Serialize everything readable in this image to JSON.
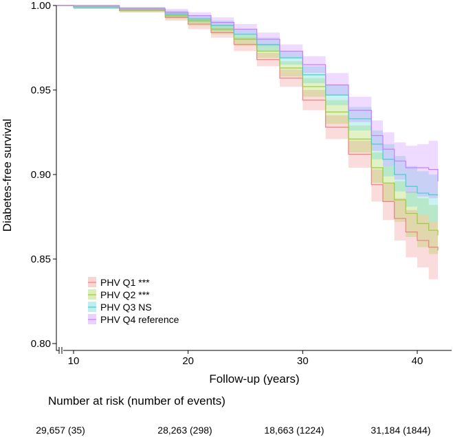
{
  "chart_data": {
    "type": "line",
    "title": "",
    "xlabel": "Follow-up (years)",
    "ylabel": "Diabetes-free survival",
    "xlim": [
      8.5,
      43
    ],
    "ylim": [
      0.8,
      1.0
    ],
    "x_ticks": [
      "10",
      "20",
      "30",
      "40"
    ],
    "y_ticks": [
      "0.80",
      "0.85",
      "0.90",
      "0.95",
      "1.00"
    ],
    "legend_position": "bottom-left",
    "confidence_bands": true,
    "series": [
      {
        "name": "PHV Q1 ***",
        "color": "#F08080",
        "x": [
          8.5,
          10,
          14,
          18,
          20,
          22,
          24,
          26,
          28,
          30,
          32,
          34,
          36,
          37,
          38,
          39,
          40,
          41,
          41.8
        ],
        "y": [
          1.0,
          0.999,
          0.997,
          0.993,
          0.989,
          0.984,
          0.977,
          0.968,
          0.957,
          0.944,
          0.928,
          0.912,
          0.894,
          0.884,
          0.874,
          0.866,
          0.861,
          0.857,
          0.855
        ],
        "lower": [
          1.0,
          0.998,
          0.996,
          0.991,
          0.986,
          0.981,
          0.973,
          0.964,
          0.952,
          0.938,
          0.921,
          0.904,
          0.884,
          0.873,
          0.861,
          0.851,
          0.845,
          0.838,
          0.835
        ],
        "upper": [
          1.0,
          1.0,
          0.999,
          0.995,
          0.992,
          0.987,
          0.981,
          0.972,
          0.962,
          0.95,
          0.935,
          0.92,
          0.903,
          0.895,
          0.886,
          0.879,
          0.876,
          0.872,
          0.871
        ]
      },
      {
        "name": "PHV Q2 ***",
        "color": "#9ACD32",
        "x": [
          8.5,
          10,
          14,
          18,
          20,
          22,
          24,
          26,
          28,
          30,
          32,
          34,
          36,
          37,
          38,
          39,
          40,
          41,
          41.8
        ],
        "y": [
          1.0,
          0.999,
          0.997,
          0.994,
          0.991,
          0.986,
          0.98,
          0.973,
          0.963,
          0.952,
          0.937,
          0.921,
          0.904,
          0.895,
          0.885,
          0.877,
          0.871,
          0.867,
          0.864
        ],
        "lower": [
          1.0,
          0.998,
          0.996,
          0.992,
          0.988,
          0.983,
          0.976,
          0.969,
          0.958,
          0.946,
          0.93,
          0.913,
          0.895,
          0.884,
          0.872,
          0.863,
          0.857,
          0.853,
          0.851
        ],
        "upper": [
          1.0,
          1.0,
          0.999,
          0.996,
          0.993,
          0.989,
          0.983,
          0.977,
          0.967,
          0.957,
          0.944,
          0.929,
          0.913,
          0.905,
          0.896,
          0.89,
          0.886,
          0.882,
          0.879
        ]
      },
      {
        "name": "PHV Q3 NS",
        "color": "#40D0D0",
        "x": [
          8.5,
          10,
          14,
          18,
          20,
          22,
          24,
          26,
          28,
          30,
          32,
          34,
          36,
          37,
          38,
          39,
          40,
          41,
          41.8
        ],
        "y": [
          1.0,
          0.999,
          0.998,
          0.995,
          0.992,
          0.988,
          0.983,
          0.977,
          0.969,
          0.959,
          0.947,
          0.933,
          0.918,
          0.909,
          0.9,
          0.893,
          0.889,
          0.888,
          0.888
        ],
        "lower": [
          1.0,
          0.998,
          0.997,
          0.993,
          0.99,
          0.985,
          0.98,
          0.973,
          0.965,
          0.954,
          0.941,
          0.926,
          0.909,
          0.899,
          0.89,
          0.881,
          0.876,
          0.872,
          0.87
        ],
        "upper": [
          1.0,
          1.0,
          0.999,
          0.997,
          0.994,
          0.991,
          0.986,
          0.981,
          0.973,
          0.964,
          0.953,
          0.94,
          0.926,
          0.918,
          0.911,
          0.905,
          0.902,
          0.9,
          0.9
        ]
      },
      {
        "name": "PHV Q4 reference",
        "color": "#C77CFF",
        "x": [
          8.5,
          10,
          14,
          18,
          20,
          22,
          24,
          26,
          28,
          30,
          32,
          34,
          36,
          37,
          38,
          39,
          40,
          41,
          41.8
        ],
        "y": [
          1.0,
          1.0,
          0.998,
          0.996,
          0.994,
          0.99,
          0.986,
          0.98,
          0.973,
          0.965,
          0.953,
          0.938,
          0.923,
          0.915,
          0.908,
          0.904,
          0.904,
          0.903,
          0.896
        ],
        "lower": [
          1.0,
          0.999,
          0.997,
          0.994,
          0.992,
          0.988,
          0.983,
          0.976,
          0.969,
          0.96,
          0.947,
          0.931,
          0.914,
          0.905,
          0.897,
          0.889,
          0.887,
          0.886,
          0.873
        ],
        "upper": [
          1.0,
          1.0,
          0.999,
          0.998,
          0.996,
          0.993,
          0.989,
          0.984,
          0.977,
          0.97,
          0.96,
          0.946,
          0.932,
          0.925,
          0.919,
          0.917,
          0.918,
          0.92,
          0.92
        ]
      }
    ]
  },
  "risk_table": {
    "title": "Number at risk (number of events)",
    "values": [
      "29,657 (35)",
      "28,263 (298)",
      "18,663 (1224)",
      "31,184 (1844)"
    ]
  }
}
